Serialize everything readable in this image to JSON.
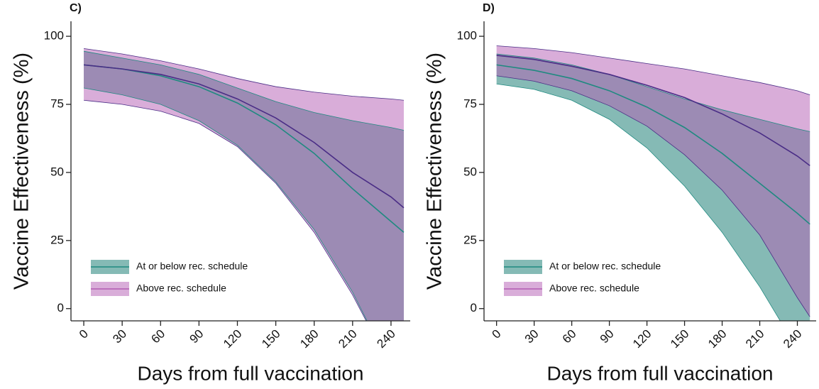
{
  "chart_data": [
    {
      "type": "line",
      "panel_label": "C)",
      "ylabel": "Vaccine Effectiveness (%)",
      "xlabel": "Days from full vaccination",
      "x": [
        0,
        30,
        60,
        90,
        120,
        150,
        180,
        210,
        240,
        250
      ],
      "xlim": [
        -10,
        255
      ],
      "ylim": [
        -4.5,
        105.5
      ],
      "xticks": [
        0,
        30,
        60,
        90,
        120,
        150,
        180,
        210,
        240
      ],
      "yticks": [
        0,
        25,
        50,
        75,
        100
      ],
      "grid": false,
      "legend": "lower left",
      "series": [
        {
          "name": "At or below rec. schedule",
          "color": "#1f8a80",
          "band_color": "#0b766c",
          "line_color": "#1f8a80",
          "values": [
            89.5,
            88,
            85.5,
            81.5,
            75.5,
            67.5,
            57,
            44,
            32,
            28
          ],
          "lower": [
            81,
            78.5,
            75,
            69,
            60,
            46.5,
            29,
            6,
            -22,
            -30
          ],
          "upper": [
            94.5,
            92,
            89.5,
            86,
            81,
            76,
            72,
            69,
            66.5,
            65.5
          ]
        },
        {
          "name": "Above rec. schedule",
          "color": "#b35cb3",
          "band_color": "#b35cb3",
          "line_color": "#4a2d86",
          "values": [
            89.5,
            88,
            86,
            82.5,
            77,
            70,
            61,
            50,
            41,
            37
          ],
          "lower": [
            76.5,
            75,
            72.5,
            68,
            59.5,
            46,
            28,
            5,
            -22,
            -31
          ],
          "upper": [
            95.5,
            93.5,
            91,
            88,
            84.5,
            81.5,
            79.5,
            78,
            77,
            76.5
          ]
        }
      ]
    },
    {
      "type": "line",
      "panel_label": "D)",
      "ylabel": "Vaccine Effectiveness (%)",
      "xlabel": "Days from full vaccination",
      "x": [
        0,
        30,
        60,
        90,
        120,
        150,
        180,
        210,
        240,
        250
      ],
      "xlim": [
        -10,
        255
      ],
      "ylim": [
        -4.5,
        105.5
      ],
      "xticks": [
        0,
        30,
        60,
        90,
        120,
        150,
        180,
        210,
        240
      ],
      "yticks": [
        0,
        25,
        50,
        75,
        100
      ],
      "grid": false,
      "legend": "lower left",
      "series": [
        {
          "name": "At or below rec. schedule",
          "color": "#1f8a80",
          "band_color": "#0b766c",
          "line_color": "#1f8a80",
          "values": [
            89.5,
            87.5,
            84.5,
            80,
            74,
            66.5,
            57,
            46,
            35,
            31
          ],
          "lower": [
            82.5,
            80.5,
            76.5,
            69.5,
            59,
            45,
            28,
            8,
            -15,
            -24
          ],
          "upper": [
            93.5,
            92,
            89.5,
            86,
            81.5,
            77,
            73,
            69.5,
            66,
            65
          ]
        },
        {
          "name": "Above rec. schedule",
          "color": "#b35cb3",
          "band_color": "#b35cb3",
          "line_color": "#4a2d86",
          "values": [
            93,
            91.5,
            89,
            86,
            82,
            77.5,
            71.5,
            64.5,
            56,
            52.5
          ],
          "lower": [
            85.5,
            83.5,
            80,
            74.5,
            67,
            56.5,
            43.5,
            27,
            4,
            -3
          ],
          "upper": [
            96.5,
            95.5,
            94,
            92,
            90,
            88,
            85.5,
            83,
            80,
            78.5
          ]
        }
      ]
    }
  ]
}
